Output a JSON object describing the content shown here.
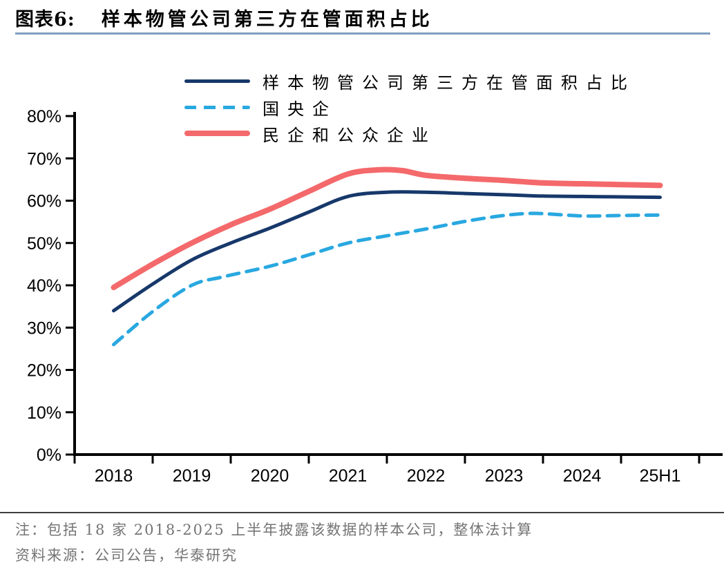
{
  "figure": {
    "label": "图表6:",
    "title": "样本物管公司第三方在管面积占比"
  },
  "chart_data": {
    "type": "line",
    "categories": [
      "2018",
      "2019",
      "2020",
      "2021",
      "2022",
      "2023",
      "2024",
      "25H1"
    ],
    "ylim": [
      0,
      80
    ],
    "ytick_step": 10,
    "ytick_labels": [
      "0%",
      "10%",
      "20%",
      "30%",
      "40%",
      "50%",
      "60%",
      "70%",
      "80%"
    ],
    "grid": false,
    "legend_position": "top-center",
    "series": [
      {
        "name": "样本物管公司第三方在管面积占比",
        "color": "#17386A",
        "style": "solid",
        "stroke_width": 5,
        "values": [
          34,
          46,
          53.5,
          61,
          62,
          61.4,
          61,
          60.8
        ],
        "samples": [
          [
            0,
            34
          ],
          [
            0.5,
            40.3
          ],
          [
            1,
            46
          ],
          [
            1.5,
            50
          ],
          [
            2,
            53.5
          ],
          [
            2.5,
            57.3
          ],
          [
            3,
            61
          ],
          [
            3.5,
            62
          ],
          [
            4,
            62
          ],
          [
            4.5,
            61.7
          ],
          [
            5,
            61.4
          ],
          [
            5.5,
            61.1
          ],
          [
            6,
            61
          ],
          [
            6.5,
            60.9
          ],
          [
            7,
            60.8
          ]
        ]
      },
      {
        "name": "国央企",
        "color": "#29A8E0",
        "style": "dashed",
        "stroke_width": 5,
        "values": [
          26,
          40,
          44.5,
          50,
          53.3,
          56.5,
          56.4,
          56.6
        ],
        "samples": [
          [
            0,
            26
          ],
          [
            0.5,
            33.8
          ],
          [
            1,
            40
          ],
          [
            1.4,
            42
          ],
          [
            2,
            44.5
          ],
          [
            2.5,
            47.2
          ],
          [
            3,
            50
          ],
          [
            3.5,
            51.7
          ],
          [
            4,
            53.3
          ],
          [
            4.5,
            55.1
          ],
          [
            5,
            56.5
          ],
          [
            5.4,
            57
          ],
          [
            6,
            56.4
          ],
          [
            6.5,
            56.5
          ],
          [
            7,
            56.6
          ]
        ]
      },
      {
        "name": "民企和公众企业",
        "color": "#F4696B",
        "style": "solid",
        "stroke_width": 8,
        "values": [
          39.5,
          50,
          58,
          66.3,
          66,
          64.8,
          64,
          63.6
        ],
        "samples": [
          [
            0,
            39.5
          ],
          [
            0.5,
            45
          ],
          [
            1,
            50
          ],
          [
            1.5,
            54.3
          ],
          [
            2,
            58
          ],
          [
            2.5,
            62.2
          ],
          [
            3,
            66.3
          ],
          [
            3.4,
            67.3
          ],
          [
            3.7,
            67.1
          ],
          [
            4,
            66
          ],
          [
            4.5,
            65.3
          ],
          [
            5,
            64.8
          ],
          [
            5.5,
            64.2
          ],
          [
            6,
            64
          ],
          [
            6.5,
            63.8
          ],
          [
            7,
            63.6
          ]
        ]
      }
    ]
  },
  "notes": {
    "note": "注：包括 18 家 2018-2025 上半年披露该数据的样本公司，整体法计算",
    "source": "资料来源：公司公告，华泰研究"
  },
  "colors": {
    "title_rule": "#7F9DC1",
    "axis": "#000000",
    "footer_rule": "#3F3F3F",
    "footer_text": "#747474"
  }
}
